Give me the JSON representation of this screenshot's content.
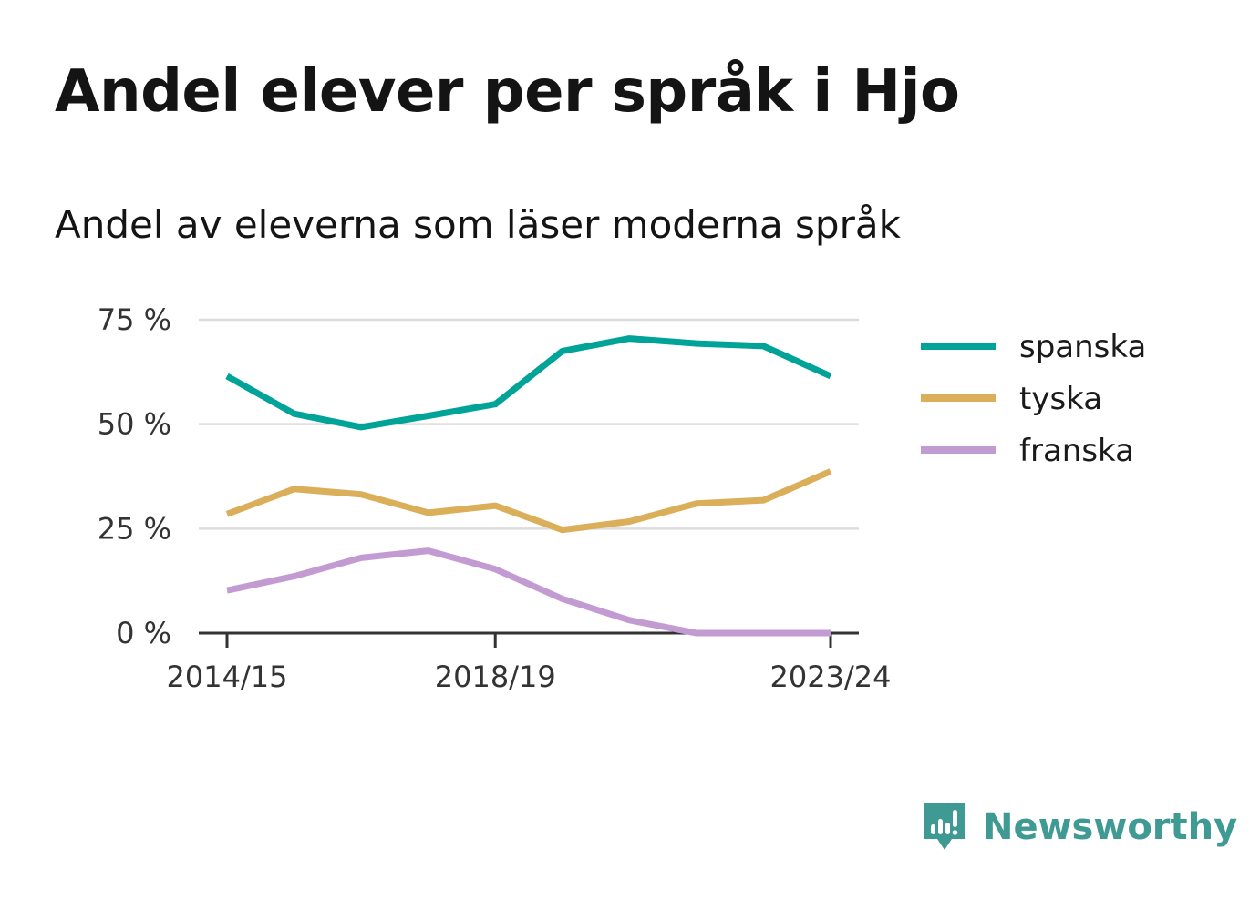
{
  "title": "Andel elever per språk i Hjo",
  "subtitle": "Andel av eleverna som läser moderna språk",
  "brand": {
    "name": "Newsworthy",
    "icon": "newsworthy-logo-icon",
    "color": "#3f9a93"
  },
  "chart_data": {
    "type": "line",
    "title": "Andel elever per språk i Hjo",
    "subtitle": "Andel av eleverna som läser moderna språk",
    "xlabel": "",
    "ylabel": "",
    "x": [
      "2014/15",
      "2015/16",
      "2016/17",
      "2017/18",
      "2018/19",
      "2019/20",
      "2020/21",
      "2021/22",
      "2022/23",
      "2023/24"
    ],
    "x_tick_labels": [
      "2014/15",
      "2018/19",
      "2023/24"
    ],
    "y_tick_labels": [
      "0 %",
      "25 %",
      "50 %",
      "75 %"
    ],
    "y_ticks": [
      0,
      25,
      50,
      75
    ],
    "ylim": [
      0,
      75
    ],
    "grid": true,
    "legend_position": "right",
    "series": [
      {
        "name": "spanska",
        "color": "#00a398",
        "values": [
          61.5,
          52.5,
          49.3,
          52.0,
          54.8,
          67.5,
          70.5,
          69.3,
          68.7,
          61.5
        ]
      },
      {
        "name": "tyska",
        "color": "#dbae5a",
        "values": [
          28.5,
          34.5,
          33.2,
          28.8,
          30.5,
          24.7,
          26.7,
          31.0,
          31.8,
          38.7
        ]
      },
      {
        "name": "franska",
        "color": "#c39bd3",
        "values": [
          10.2,
          13.6,
          18.0,
          19.7,
          15.3,
          8.2,
          3.1,
          0,
          0,
          0
        ]
      }
    ]
  }
}
